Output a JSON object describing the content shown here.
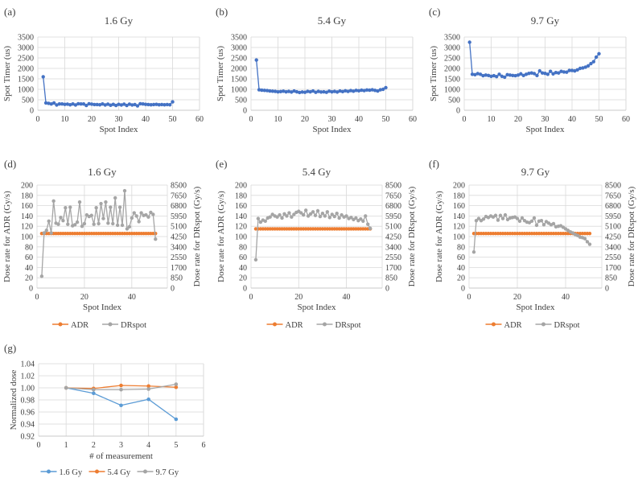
{
  "colors": {
    "timer": "#4472C4",
    "adr": "#ED7D31",
    "drspot": "#A5A5A5",
    "g16": "#5B9BD5",
    "g54": "#ED7D31",
    "g97": "#A5A5A5",
    "grid": "#D9D9D9"
  },
  "chart_data": [
    {
      "panel_label": "(a)",
      "type": "line",
      "title": "1.6 Gy",
      "xlabel": "Spot Index",
      "ylabel": "Spot Timer (us)",
      "xlim": [
        0,
        60
      ],
      "ylim": [
        0,
        3500
      ],
      "xticks": [
        "0",
        "10",
        "20",
        "30",
        "40",
        "50",
        "60"
      ],
      "yticks": [
        "0",
        "500",
        "1000",
        "1500",
        "2000",
        "2500",
        "3000",
        "3500"
      ],
      "series": [
        {
          "name": "Spot Timer",
          "color": "#4472C4",
          "x_start": 2,
          "values": [
            1600,
            350,
            330,
            300,
            350,
            250,
            300,
            300,
            280,
            290,
            260,
            300,
            250,
            310,
            300,
            300,
            230,
            310,
            290,
            270,
            270,
            260,
            300,
            250,
            290,
            240,
            280,
            230,
            280,
            250,
            290,
            230,
            290,
            250,
            270,
            210,
            310,
            300,
            280,
            270,
            260,
            270,
            280,
            260,
            270,
            260,
            270,
            260,
            400
          ]
        }
      ]
    },
    {
      "panel_label": "(b)",
      "type": "line",
      "title": "5.4 Gy",
      "xlabel": "Spot Index",
      "ylabel": "Spot Timer (us)",
      "xlim": [
        0,
        60
      ],
      "ylim": [
        0,
        3500
      ],
      "xticks": [
        "0",
        "10",
        "20",
        "30",
        "40",
        "50",
        "60"
      ],
      "yticks": [
        "0",
        "500",
        "1000",
        "1500",
        "2000",
        "2500",
        "3000",
        "3500"
      ],
      "series": [
        {
          "name": "Spot Timer",
          "color": "#4472C4",
          "x_start": 2,
          "values": [
            2400,
            980,
            960,
            950,
            940,
            920,
            910,
            900,
            880,
            890,
            910,
            880,
            900,
            870,
            920,
            880,
            850,
            870,
            860,
            900,
            880,
            920,
            860,
            900,
            870,
            880,
            860,
            910,
            880,
            900,
            870,
            920,
            890,
            930,
            900,
            940,
            910,
            950,
            930,
            960,
            940,
            970,
            960,
            980,
            950,
            920,
            980,
            1000,
            1080
          ]
        }
      ]
    },
    {
      "panel_label": "(c)",
      "type": "line",
      "title": "9.7 Gy",
      "xlabel": "Spot Index",
      "ylabel": "Spot Timer (us)",
      "xlim": [
        0,
        60
      ],
      "ylim": [
        0,
        3500
      ],
      "xticks": [
        "0",
        "10",
        "20",
        "30",
        "40",
        "50",
        "60"
      ],
      "yticks": [
        "0",
        "500",
        "1000",
        "1500",
        "2000",
        "2500",
        "3000",
        "3500"
      ],
      "series": [
        {
          "name": "Spot Timer",
          "color": "#4472C4",
          "x_start": 2,
          "values": [
            3250,
            1720,
            1700,
            1750,
            1720,
            1650,
            1680,
            1660,
            1620,
            1650,
            1610,
            1720,
            1620,
            1580,
            1700,
            1680,
            1660,
            1650,
            1680,
            1740,
            1660,
            1720,
            1760,
            1780,
            1750,
            1660,
            1880,
            1780,
            1760,
            1720,
            1860,
            1740,
            1800,
            1780,
            1860,
            1830,
            1820,
            1900,
            1900,
            1880,
            1930,
            2000,
            2020,
            2060,
            2120,
            2230,
            2320,
            2540,
            2700
          ]
        }
      ]
    },
    {
      "panel_label": "(d)",
      "type": "line",
      "title": "1.6 Gy",
      "xlabel": "Spot Index",
      "ylabel": "Dose rate for ADR (Gy/s)",
      "ylabel_right": "Dose rate for DRspot (Gy/s)",
      "xlim": [
        0,
        55
      ],
      "ylim": [
        0,
        200
      ],
      "y2lim": [
        0,
        8500
      ],
      "xticks": [
        "0",
        "20",
        "40"
      ],
      "yticks": [
        "0",
        "20",
        "40",
        "60",
        "80",
        "100",
        "120",
        "140",
        "160",
        "180",
        "200"
      ],
      "y2ticks": [
        "0",
        "850",
        "1700",
        "2550",
        "3400",
        "4250",
        "5100",
        "5950",
        "6800",
        "7650",
        "8500"
      ],
      "legend": [
        "ADR",
        "DRspot"
      ],
      "series": [
        {
          "name": "ADR",
          "color": "#ED7D31",
          "axis": "left",
          "x_start": 2,
          "constant": 106,
          "count": 49
        },
        {
          "name": "DRspot",
          "color": "#A5A5A5",
          "axis": "right",
          "x_start": 2,
          "values": [
            978,
            4548,
            4760,
            5525,
            4548,
            7183,
            5355,
            5270,
            5823,
            5568,
            6630,
            5270,
            6673,
            5143,
            5228,
            5440,
            7098,
            5100,
            5313,
            6035,
            5908,
            5993,
            5270,
            6630,
            5313,
            6970,
            5738,
            7098,
            5355,
            6673,
            5313,
            7438,
            5185,
            6673,
            5185,
            8033,
            4888,
            5058,
            5780,
            6205,
            5950,
            5483,
            6205,
            5993,
            6035,
            5865,
            6248,
            6078,
            4038
          ]
        }
      ]
    },
    {
      "panel_label": "(e)",
      "type": "line",
      "title": "5.4 Gy",
      "xlabel": "Spot Index",
      "ylabel": "Dose rate for ADR (Gy/s)",
      "ylabel_right": "Dose rate for DRspot (Gy/s)",
      "xlim": [
        0,
        55
      ],
      "ylim": [
        0,
        200
      ],
      "y2lim": [
        0,
        8500
      ],
      "xticks": [
        "0",
        "20",
        "40"
      ],
      "yticks": [
        "0",
        "20",
        "40",
        "60",
        "80",
        "100",
        "120",
        "140",
        "160",
        "180",
        "200"
      ],
      "y2ticks": [
        "0",
        "850",
        "1700",
        "2550",
        "3400",
        "4250",
        "5100",
        "5950",
        "6800",
        "7650",
        "8500"
      ],
      "legend": [
        "ADR",
        "DRspot"
      ],
      "series": [
        {
          "name": "ADR",
          "color": "#ED7D31",
          "axis": "left",
          "x_start": 2,
          "constant": 115,
          "count": 49
        },
        {
          "name": "DRspot",
          "color": "#A5A5A5",
          "axis": "right",
          "x_start": 2,
          "values": [
            2338,
            5738,
            5440,
            5610,
            5525,
            5780,
            5865,
            6078,
            5950,
            5865,
            6035,
            5780,
            6120,
            5950,
            6205,
            5865,
            6078,
            6248,
            6333,
            6205,
            6035,
            6418,
            5950,
            6120,
            6290,
            5993,
            6375,
            5908,
            6163,
            5950,
            6290,
            5823,
            6078,
            5908,
            6163,
            5780,
            6035,
            5865,
            5950,
            5738,
            5823,
            5653,
            5780,
            5568,
            5695,
            5525,
            5950,
            5270,
            4930
          ]
        }
      ]
    },
    {
      "panel_label": "(f)",
      "type": "line",
      "title": "9.7 Gy",
      "xlabel": "Spot Index",
      "ylabel": "Dose rate for ADR (Gy/s)",
      "ylabel_right": "Dose rate for DRspot (Gy/s)",
      "xlim": [
        0,
        55
      ],
      "ylim": [
        0,
        200
      ],
      "y2lim": [
        0,
        8500
      ],
      "xticks": [
        "0",
        "20",
        "40"
      ],
      "yticks": [
        "0",
        "20",
        "40",
        "60",
        "80",
        "100",
        "120",
        "140",
        "160",
        "180",
        "200"
      ],
      "y2ticks": [
        "0",
        "850",
        "1700",
        "2550",
        "3400",
        "4250",
        "5100",
        "5950",
        "6800",
        "7650",
        "8500"
      ],
      "legend": [
        "ADR",
        "DRspot"
      ],
      "series": [
        {
          "name": "ADR",
          "color": "#ED7D31",
          "axis": "left",
          "x_start": 2,
          "constant": 106,
          "count": 49
        },
        {
          "name": "DRspot",
          "color": "#A5A5A5",
          "axis": "right",
          "x_start": 2,
          "values": [
            2975,
            5568,
            5738,
            5568,
            5695,
            5908,
            5823,
            5950,
            5865,
            5993,
            5610,
            5993,
            5738,
            6035,
            5653,
            5780,
            5823,
            5865,
            5738,
            5525,
            5780,
            5568,
            5440,
            5398,
            5525,
            5780,
            5185,
            5525,
            5568,
            5228,
            5483,
            5355,
            5228,
            5313,
            5058,
            5100,
            5143,
            5015,
            4888,
            4760,
            4633,
            4548,
            4420,
            4335,
            4208,
            4165,
            4080,
            3825,
            3613
          ]
        }
      ]
    },
    {
      "panel_label": "(g)",
      "type": "line",
      "title": "",
      "xlabel": "# of measurement",
      "ylabel": "Normalized dose",
      "xlim": [
        0,
        6
      ],
      "ylim": [
        0.92,
        1.04
      ],
      "xticks": [
        "0",
        "1",
        "2",
        "3",
        "4",
        "5",
        "6"
      ],
      "yticks": [
        "0.92",
        "0.94",
        "0.96",
        "0.98",
        "1.00",
        "1.02",
        "1.04"
      ],
      "legend": [
        "1.6 Gy",
        "5.4 Gy",
        "9.7 Gy"
      ],
      "series": [
        {
          "name": "1.6 Gy",
          "color": "#5B9BD5",
          "x_start": 1,
          "values": [
            1.0,
            0.991,
            0.971,
            0.981,
            0.948
          ]
        },
        {
          "name": "5.4 Gy",
          "color": "#ED7D31",
          "x_start": 1,
          "values": [
            1.0,
            0.999,
            1.004,
            1.003,
            1.001
          ]
        },
        {
          "name": "9.7 Gy",
          "color": "#A5A5A5",
          "x_start": 1,
          "values": [
            1.0,
            0.997,
            0.997,
            0.998,
            1.006
          ]
        }
      ]
    }
  ]
}
